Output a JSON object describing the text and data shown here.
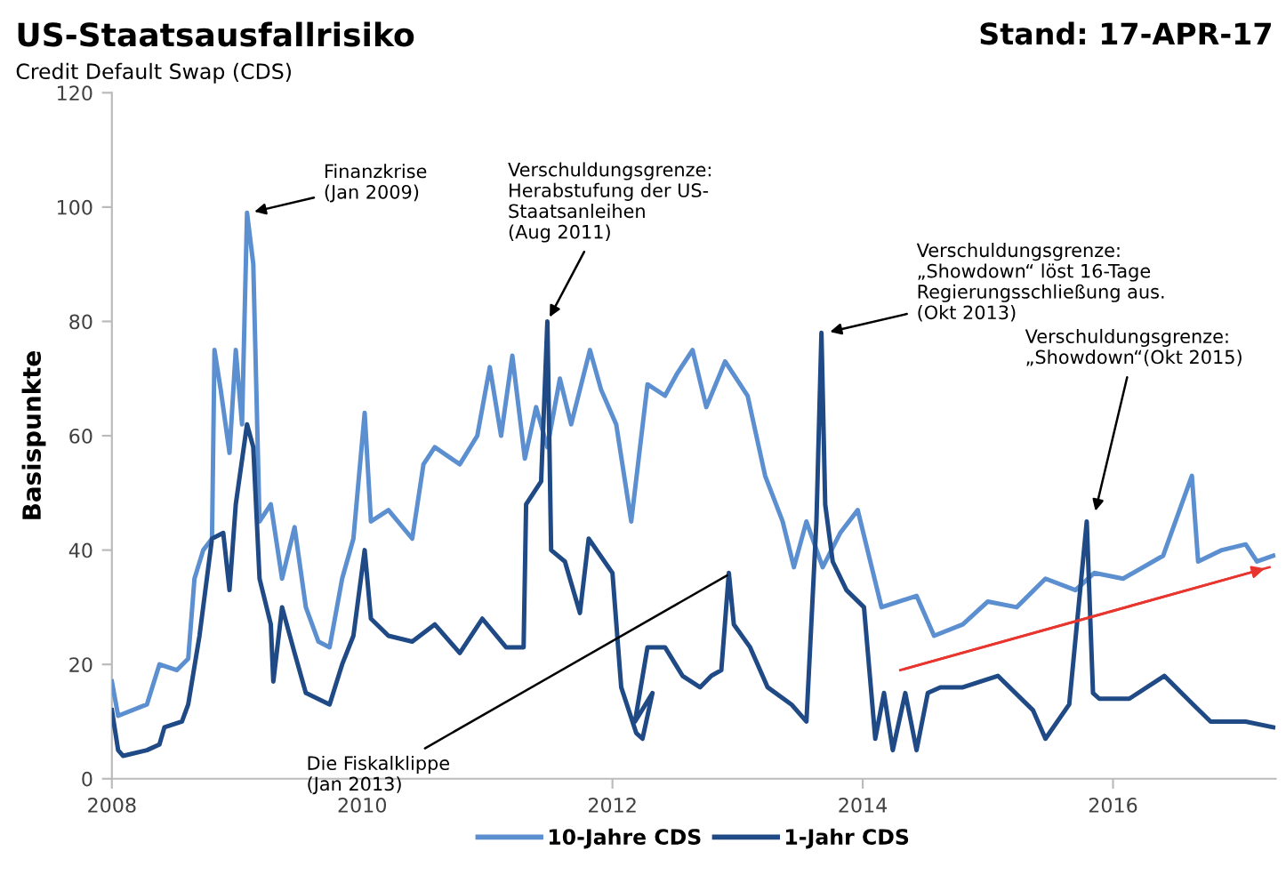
{
  "chart_data": {
    "type": "line",
    "title": "US-Staatsausfallrisiko",
    "subtitle": "Credit Default Swap (CDS)",
    "ylabel": "Basispunkte",
    "xlim": [
      2008,
      2017.3
    ],
    "xticks": [
      2008,
      2010,
      2012,
      2014,
      2016
    ],
    "ylim": [
      0,
      120
    ],
    "yticks": [
      0,
      20,
      40,
      60,
      80,
      100,
      120
    ],
    "grid": false,
    "legend": "bottom",
    "marker": "none",
    "line_style": "solid",
    "series": [
      {
        "name": "10-Jahre CDS",
        "color": "#5b8fd0",
        "x": [
          2008.0,
          2008.05,
          2008.28,
          2008.38,
          2008.52,
          2008.61,
          2008.66,
          2008.73,
          2008.8,
          2008.82,
          2008.87,
          2008.94,
          2008.99,
          2009.04,
          2009.08,
          2009.13,
          2009.18,
          2009.27,
          2009.36,
          2009.46,
          2009.55,
          2009.65,
          2009.74,
          2009.84,
          2009.93,
          2010.02,
          2010.07,
          2010.21,
          2010.4,
          2010.49,
          2010.58,
          2010.78,
          2010.92,
          2011.02,
          2011.11,
          2011.2,
          2011.3,
          2011.39,
          2011.48,
          2011.58,
          2011.67,
          2011.82,
          2011.91,
          2012.03,
          2012.15,
          2012.28,
          2012.42,
          2012.52,
          2012.64,
          2012.75,
          2012.9,
          2013.08,
          2013.22,
          2013.36,
          2013.45,
          2013.55,
          2013.68,
          2013.82,
          2013.96,
          2014.15,
          2014.43,
          2014.57,
          2014.8,
          2015.0,
          2015.23,
          2015.46,
          2015.7,
          2015.85,
          2016.08,
          2016.4,
          2016.63,
          2016.68,
          2016.87,
          2017.06,
          2017.15,
          2017.28
        ],
        "values": [
          17,
          11,
          13,
          20,
          19,
          21,
          35,
          40,
          42,
          75,
          68,
          57,
          75,
          62,
          99,
          90,
          45,
          48,
          35,
          44,
          30,
          24,
          23,
          35,
          42,
          64,
          45,
          47,
          42,
          55,
          58,
          55,
          60,
          72,
          60,
          74,
          56,
          65,
          58,
          70,
          62,
          75,
          68,
          62,
          45,
          69,
          67,
          71,
          75,
          65,
          73,
          67,
          53,
          45,
          37,
          45,
          37,
          43,
          47,
          30,
          32,
          25,
          27,
          31,
          30,
          35,
          33,
          36,
          35,
          39,
          53,
          38,
          40,
          41,
          38,
          39
        ]
      },
      {
        "name": "1-Jahr CDS",
        "color": "#1f4a85",
        "x": [
          2008.0,
          2008.05,
          2008.09,
          2008.28,
          2008.38,
          2008.42,
          2008.56,
          2008.61,
          2008.7,
          2008.8,
          2008.89,
          2008.94,
          2008.99,
          2009.08,
          2009.13,
          2009.18,
          2009.27,
          2009.29,
          2009.36,
          2009.46,
          2009.55,
          2009.74,
          2009.84,
          2009.93,
          2010.02,
          2010.07,
          2010.21,
          2010.4,
          2010.58,
          2010.78,
          2010.96,
          2011.15,
          2011.29,
          2011.31,
          2011.43,
          2011.48,
          2011.51,
          2011.62,
          2011.74,
          2011.81,
          2012.0,
          2012.07,
          2012.19,
          2012.24,
          2012.32,
          2012.18,
          2012.28,
          2012.42,
          2012.56,
          2012.7,
          2012.79,
          2012.87,
          2012.93,
          2012.97,
          2013.1,
          2013.24,
          2013.43,
          2013.55,
          2013.63,
          2013.67,
          2013.7,
          2013.76,
          2013.87,
          2014.01,
          2014.1,
          2014.17,
          2014.24,
          2014.34,
          2014.43,
          2014.52,
          2014.62,
          2014.8,
          2015.08,
          2015.36,
          2015.46,
          2015.65,
          2015.79,
          2015.84,
          2015.89,
          2016.13,
          2016.41,
          2016.64,
          2016.78,
          2016.87,
          2017.06,
          2017.28
        ],
        "values": [
          12,
          5,
          4,
          5,
          6,
          9,
          10,
          13,
          25,
          42,
          43,
          33,
          48,
          62,
          58,
          35,
          27,
          17,
          30,
          22,
          15,
          13,
          20,
          25,
          40,
          28,
          25,
          24,
          27,
          22,
          28,
          23,
          23,
          48,
          52,
          80,
          40,
          38,
          29,
          42,
          36,
          16,
          8,
          7,
          15,
          10,
          23,
          23,
          18,
          16,
          18,
          19,
          36,
          27,
          23,
          16,
          13,
          10,
          45,
          78,
          48,
          38,
          33,
          30,
          7,
          15,
          5,
          15,
          5,
          15,
          16,
          16,
          18,
          12,
          7,
          13,
          45,
          15,
          14,
          14,
          18,
          13,
          10,
          10,
          10,
          9
        ]
      },
      {
        "type": "line",
        "color": "#e8352e",
        "x": [
          2014.3,
          2017.25
        ],
        "values": [
          19,
          37
        ]
      }
    ],
    "annotations": [
      "Stand: 17-APR-17",
      {
        "text": "Finanzkrise\n(Jan 2009)",
        "x": 2009.1,
        "y": 99
      },
      {
        "text": "Verschuldungsgrenze:\nHerabstufung der US-\nStaatsanleihen\n(Aug 2011)",
        "x": 2011.48,
        "y": 80
      },
      {
        "text": "Verschuldungsgrenze:\n„Showdown“ löst 16-Tage\nRegierungsschließung aus.\n(Okt 2013)",
        "x": 2013.7,
        "y": 78
      },
      {
        "text": "Verschuldungsgrenze:\n„Showdown“(Okt 2015)",
        "x": 2015.85,
        "y": 46
      },
      {
        "text": "Die Fiskalklippe\n(Jan 2013)",
        "x": 2012.95,
        "y": 36
      }
    ]
  }
}
